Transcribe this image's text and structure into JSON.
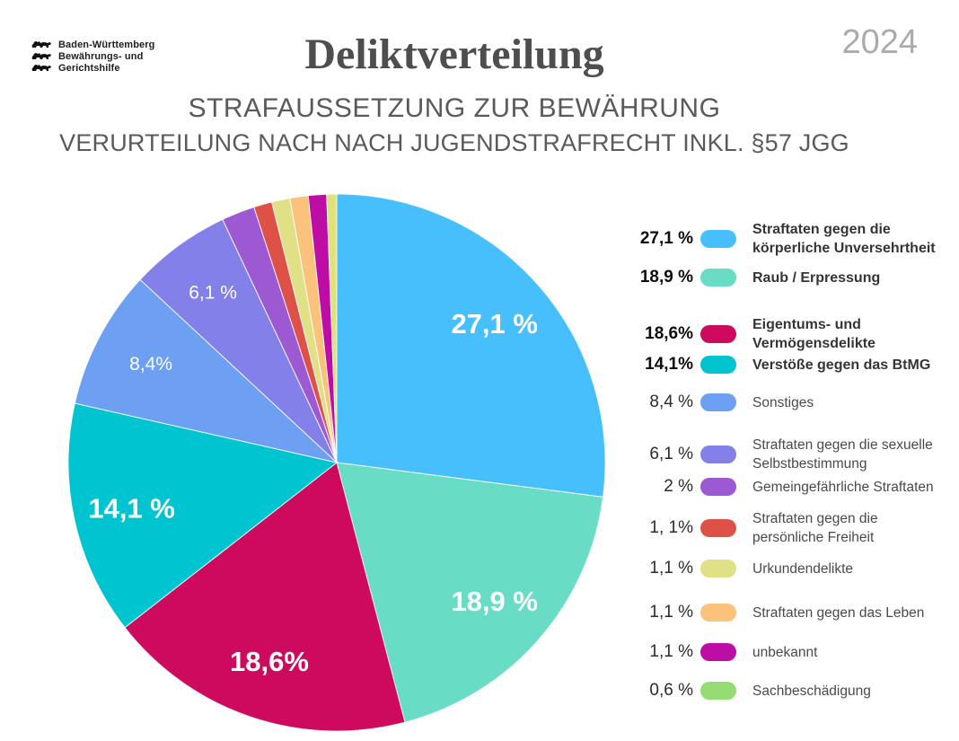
{
  "header": {
    "logo_lines": [
      "Baden-Württemberg",
      "Bewährungs- und",
      "Gerichtshilfe"
    ],
    "year": "2024",
    "title": "Deliktverteilung",
    "subtitle1": "STRAFAUSSETZUNG ZUR BEWÄHRUNG",
    "subtitle2": "VERURTEILUNG NACH NACH JUGENDSTRAFRECHT INKL. §57 JGG"
  },
  "chart_data": {
    "type": "pie",
    "title": "Deliktverteilung",
    "start_angle_deg": 0,
    "direction": "clockwise",
    "legend_position": "right",
    "slices": [
      {
        "label": "Straftaten gegen die körperliche Unversehrtheit",
        "value": 27.1,
        "legend_percent": "27,1 %",
        "pie_label": "27,1 %",
        "color": "#47BFFC",
        "bold": true
      },
      {
        "label": "Raub / Erpressung",
        "value": 18.9,
        "legend_percent": "18,9 %",
        "pie_label": "18,9 %",
        "color": "#68DCC4",
        "bold": true
      },
      {
        "label": "Eigentums- und Vermögensdelikte",
        "value": 18.6,
        "legend_percent": "18,6%",
        "pie_label": "18,6%",
        "color": "#CE0A5E",
        "bold": true
      },
      {
        "label": "Verstöße gegen das BtMG",
        "value": 14.1,
        "legend_percent": "14,1%",
        "pie_label": "14,1 %",
        "color": "#00C4CF",
        "bold": true
      },
      {
        "label": "Sonstiges",
        "value": 8.4,
        "legend_percent": "8,4 %",
        "pie_label": "8,4%",
        "color": "#6D9FF3",
        "bold": false
      },
      {
        "label": "Straftaten gegen die sexuelle Selbstbestimmung",
        "value": 6.1,
        "legend_percent": "6,1 %",
        "pie_label": "6,1 %",
        "color": "#8480EA",
        "bold": false
      },
      {
        "label": "Gemeingefährliche Straftaten",
        "value": 2.0,
        "legend_percent": "2 %",
        "pie_label": "",
        "color": "#9D59D2",
        "bold": false
      },
      {
        "label": "Straftaten gegen die persönliche Freiheit",
        "value": 1.1,
        "legend_percent": "1, 1%",
        "pie_label": "",
        "color": "#DD5147",
        "bold": false
      },
      {
        "label": "Urkundendelikte",
        "value": 1.1,
        "legend_percent": "1,1 %",
        "pie_label": "",
        "color": "#E0E187",
        "bold": false
      },
      {
        "label": "Straftaten gegen das Leben",
        "value": 1.1,
        "legend_percent": "1,1 %",
        "pie_label": "",
        "color": "#FAC27B",
        "bold": false
      },
      {
        "label": "unbekannt",
        "value": 1.1,
        "legend_percent": "1,1 %",
        "pie_label": "",
        "color": "#BE0DA5",
        "bold": false
      },
      {
        "label": "Sachbeschädigung",
        "value": 0.6,
        "legend_percent": "0,6 %",
        "pie_label": "",
        "color": "#95DC72",
        "pie_color": "#DDE377",
        "bold": false
      }
    ]
  }
}
